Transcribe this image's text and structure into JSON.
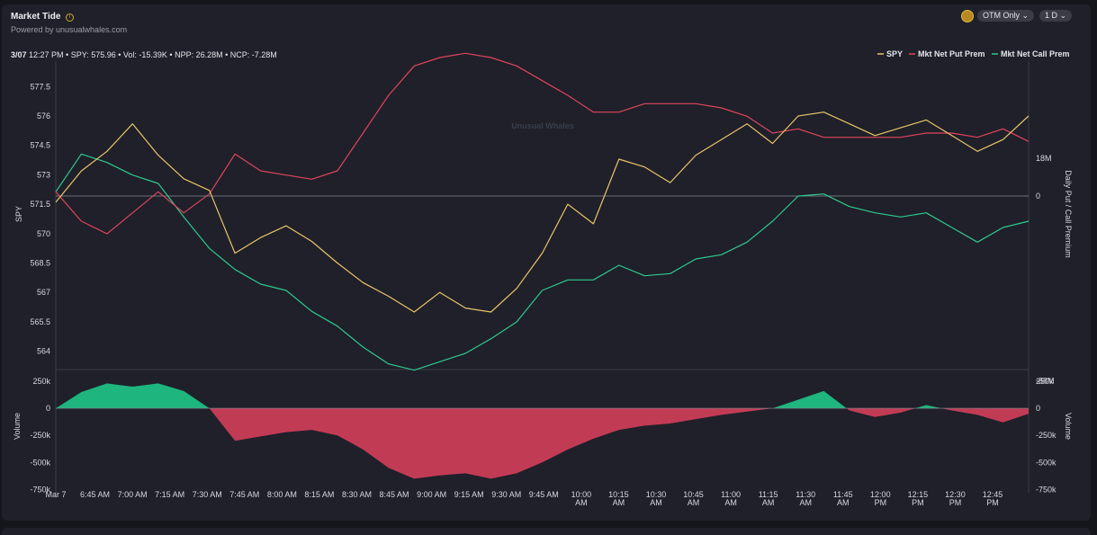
{
  "header": {
    "title": "Market Tide",
    "subtitle": "Powered by unusualwhales.com",
    "filter_label": "OTM Only",
    "range_label": "1 D",
    "info_icon": "info-icon",
    "coin_icon": "coin-icon"
  },
  "readout": {
    "date": "3/07",
    "text": "12:27 PM • SPY: 575.96 • Vol: -15.39K • NPP: 26.28M • NCP: -7.28M"
  },
  "watermark": "Unusual Whales",
  "colors": {
    "spy": "#e9c46a",
    "put": "#e0445f",
    "call": "#2ec98f",
    "vol_pos": "#1fb57e",
    "vol_neg": "#c23b55"
  },
  "chart_data": [
    {
      "type": "line",
      "ylabel": "SPY",
      "y2label": "Daily Put / Call Premium",
      "ylim": [
        563.2,
        578.8
      ],
      "yticks": [
        "577.5",
        "576",
        "574.5",
        "573",
        "571.5",
        "570",
        "568.5",
        "567",
        "565.5",
        "564"
      ],
      "y2ticks": [
        "18M",
        "0",
        "-88M"
      ],
      "legend": [
        "SPY",
        "Mkt Net Put Prem",
        "Mkt Net Call Prem"
      ],
      "legend_position": "top-right",
      "x": [
        "6:30",
        "6:40",
        "6:50",
        "7:00",
        "7:10",
        "7:20",
        "7:30",
        "7:40",
        "7:50",
        "8:00",
        "8:10",
        "8:20",
        "8:30",
        "8:40",
        "8:50",
        "9:00",
        "9:10",
        "9:20",
        "9:30",
        "9:40",
        "9:50",
        "10:00",
        "10:10",
        "10:20",
        "10:30",
        "10:40",
        "10:50",
        "11:00",
        "11:10",
        "11:20",
        "11:30",
        "11:40",
        "11:50",
        "12:00",
        "12:10",
        "12:20",
        "12:30",
        "12:40",
        "12:50"
      ],
      "series": [
        {
          "name": "SPY",
          "values": [
            571.6,
            573.2,
            574.2,
            575.6,
            574.0,
            572.8,
            572.2,
            569.0,
            569.8,
            570.4,
            569.6,
            568.5,
            567.5,
            566.8,
            566.0,
            567.0,
            566.2,
            566.0,
            567.2,
            569.0,
            571.5,
            570.5,
            573.8,
            573.4,
            572.6,
            574.0,
            574.8,
            575.6,
            574.6,
            576.0,
            576.2,
            575.6,
            575.0,
            575.4,
            575.8,
            575.0,
            574.2,
            574.8,
            576.0
          ]
        },
        {
          "name": "Mkt Net Put Prem",
          "values": [
            2,
            -12,
            -18,
            -8,
            2,
            -8,
            1,
            20,
            12,
            10,
            8,
            12,
            30,
            48,
            62,
            66,
            68,
            66,
            62,
            55,
            48,
            40,
            40,
            44,
            44,
            44,
            42,
            38,
            30,
            32,
            28,
            28,
            28,
            28,
            30,
            30,
            28,
            32,
            26
          ]
        },
        {
          "name": "Mkt Net Call Prem",
          "values": [
            2,
            20,
            16,
            10,
            6,
            -10,
            -25,
            -35,
            -42,
            -45,
            -55,
            -62,
            -72,
            -80,
            -83,
            -79,
            -75,
            -68,
            -60,
            -45,
            -40,
            -40,
            -33,
            -38,
            -37,
            -30,
            -28,
            -22,
            -12,
            0,
            1,
            -5,
            -8,
            -10,
            -8,
            -15,
            -22,
            -15,
            -12
          ]
        }
      ]
    },
    {
      "type": "area",
      "ylabel": "Volume",
      "ylim": [
        -780000,
        300000
      ],
      "yticks": [
        "250k",
        "0",
        "-250k",
        "-500k",
        "-750k"
      ],
      "x": [
        "6:30",
        "6:40",
        "6:50",
        "7:00",
        "7:10",
        "7:20",
        "7:30",
        "7:40",
        "7:50",
        "8:00",
        "8:10",
        "8:20",
        "8:30",
        "8:40",
        "8:50",
        "9:00",
        "9:10",
        "9:20",
        "9:30",
        "9:40",
        "9:50",
        "10:00",
        "10:10",
        "10:20",
        "10:30",
        "10:40",
        "10:50",
        "11:00",
        "11:10",
        "11:20",
        "11:30",
        "11:40",
        "11:50",
        "12:00",
        "12:10",
        "12:20",
        "12:30",
        "12:40",
        "12:50"
      ],
      "xticks": [
        "Mar 7",
        "6:45 AM",
        "7:00 AM",
        "7:15 AM",
        "7:30 AM",
        "7:45 AM",
        "8:00 AM",
        "8:15 AM",
        "8:30 AM",
        "8:45 AM",
        "9:00 AM",
        "9:15 AM",
        "9:30 AM",
        "9:45 AM",
        "10:00 AM",
        "10:15 AM",
        "10:30 AM",
        "10:45 AM",
        "11:00 AM",
        "11:15 AM",
        "11:30 AM",
        "11:45 AM",
        "12:00 PM",
        "12:15 PM",
        "12:30 PM",
        "12:45 PM"
      ],
      "series": [
        {
          "name": "Volume",
          "values": [
            0,
            150000,
            230000,
            200000,
            230000,
            160000,
            0,
            -300000,
            -260000,
            -220000,
            -200000,
            -250000,
            -380000,
            -550000,
            -650000,
            -620000,
            -600000,
            -650000,
            -600000,
            -500000,
            -380000,
            -280000,
            -200000,
            -160000,
            -140000,
            -100000,
            -60000,
            -30000,
            0,
            80000,
            160000,
            -20000,
            -80000,
            -40000,
            30000,
            -20000,
            -60000,
            -130000,
            -50000
          ]
        }
      ]
    }
  ]
}
